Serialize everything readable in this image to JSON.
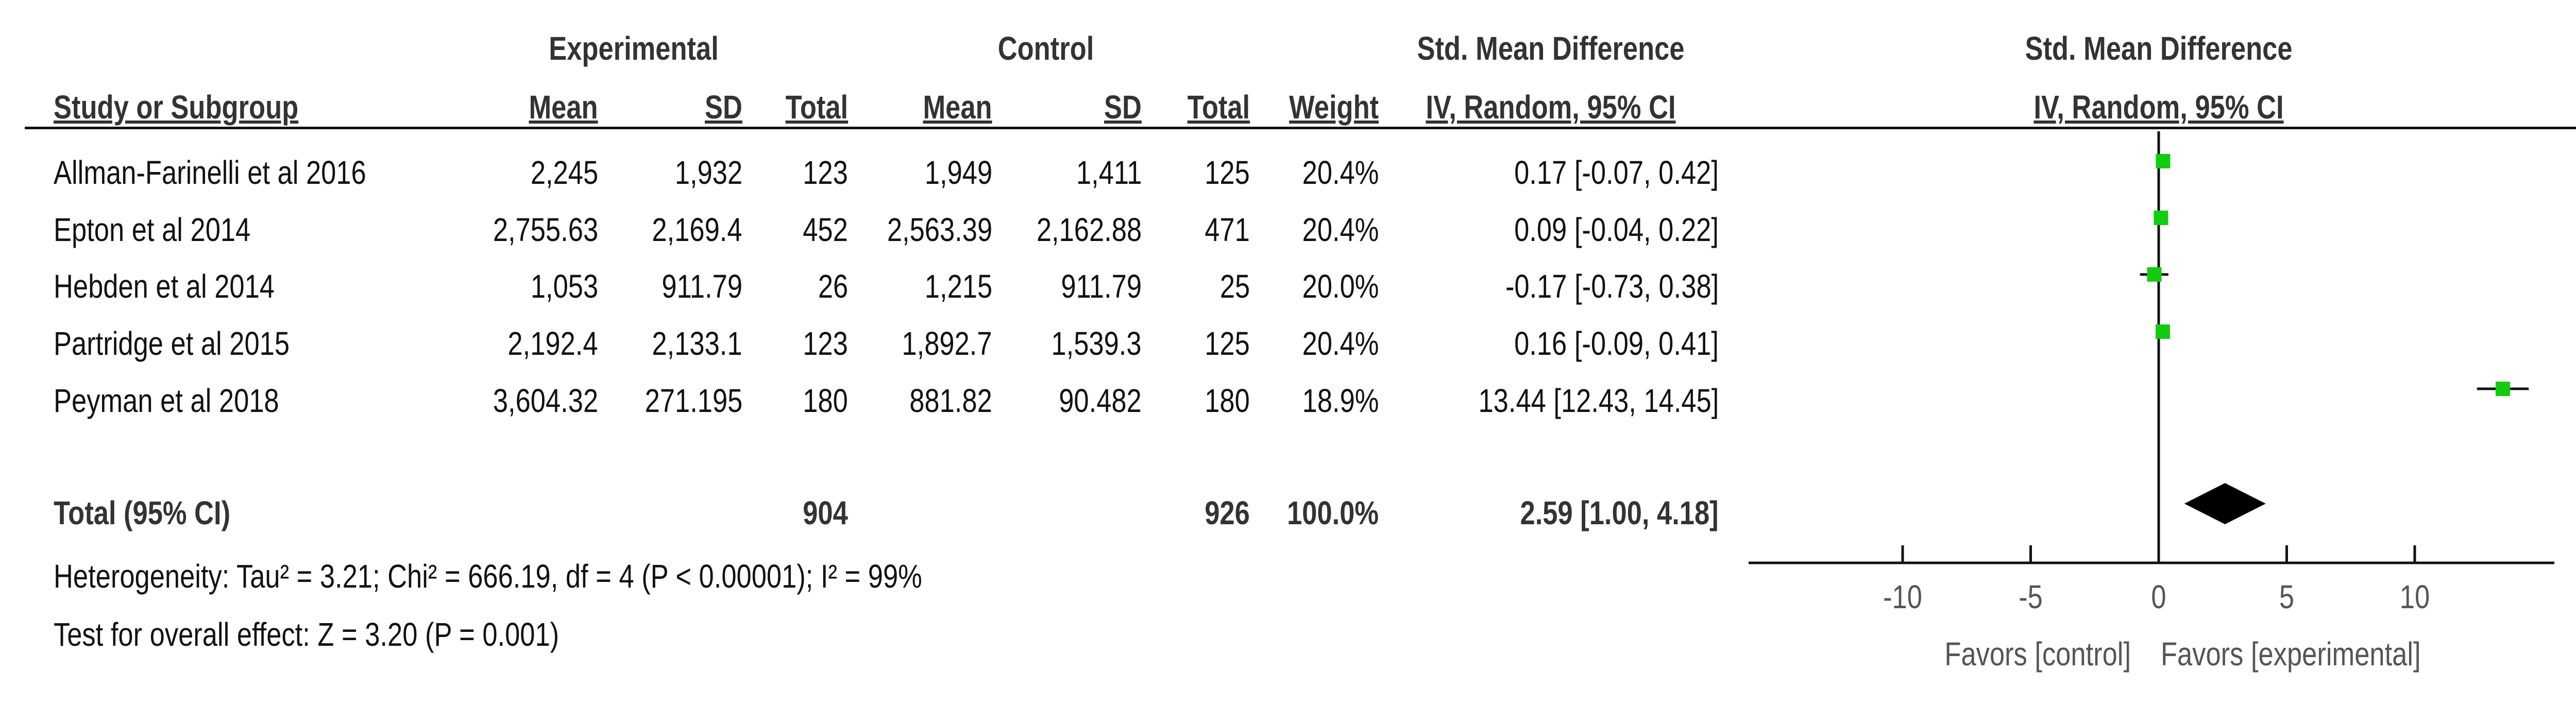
{
  "headers": {
    "experimental": "Experimental",
    "control": "Control",
    "smd": "Std. Mean Difference",
    "study_or_subgroup": "Study or Subgroup",
    "mean": "Mean",
    "sd": "SD",
    "total": "Total",
    "weight": "Weight",
    "method": "IV, Random, 95% CI",
    "plot_smd": "Std. Mean Difference",
    "plot_method": "IV, Random, 95% CI"
  },
  "studies": [
    {
      "name": "Allman-Farinelli et al 2016",
      "exp_mean": "2,245",
      "exp_sd": "1,932",
      "exp_total": "123",
      "ctl_mean": "1,949",
      "ctl_sd": "1,411",
      "ctl_total": "125",
      "weight": "20.4%",
      "ci_text": "0.17 [-0.07, 0.42]"
    },
    {
      "name": "Epton et al 2014",
      "exp_mean": "2,755.63",
      "exp_sd": "2,169.4",
      "exp_total": "452",
      "ctl_mean": "2,563.39",
      "ctl_sd": "2,162.88",
      "ctl_total": "471",
      "weight": "20.4%",
      "ci_text": "0.09 [-0.04, 0.22]"
    },
    {
      "name": "Hebden et al  2014",
      "exp_mean": "1,053",
      "exp_sd": "911.79",
      "exp_total": "26",
      "ctl_mean": "1,215",
      "ctl_sd": "911.79",
      "ctl_total": "25",
      "weight": "20.0%",
      "ci_text": "-0.17 [-0.73, 0.38]"
    },
    {
      "name": "Partridge et al 2015",
      "exp_mean": "2,192.4",
      "exp_sd": "2,133.1",
      "exp_total": "123",
      "ctl_mean": "1,892.7",
      "ctl_sd": "1,539.3",
      "ctl_total": "125",
      "weight": "20.4%",
      "ci_text": "0.16 [-0.09, 0.41]"
    },
    {
      "name": "Peyman et al 2018",
      "exp_mean": "3,604.32",
      "exp_sd": "271.195",
      "exp_total": "180",
      "ctl_mean": "881.82",
      "ctl_sd": "90.482",
      "ctl_total": "180",
      "weight": "18.9%",
      "ci_text": "13.44 [12.43, 14.45]"
    }
  ],
  "total": {
    "label": "Total (95% CI)",
    "exp_total": "904",
    "ctl_total": "926",
    "weight": "100.0%",
    "ci_text": "2.59 [1.00, 4.18]"
  },
  "heterogeneity": "Heterogeneity: Tau² = 3.21; Chi² = 666.19, df = 4 (P < 0.00001); I² = 99%",
  "overall_effect": "Test for overall effect: Z = 3.20 (P = 0.001)",
  "favors_left": "Favors [control]",
  "favors_right": "Favors [experimental]",
  "colors": {
    "marker": "#11cc11",
    "diamond": "#000000",
    "axis": "#111111"
  },
  "chart_data": {
    "type": "forest",
    "series": [
      {
        "name": "Allman-Farinelli et al 2016",
        "estimate": 0.17,
        "ci": [
          -0.07,
          0.42
        ],
        "weight": 20.4
      },
      {
        "name": "Epton et al 2014",
        "estimate": 0.09,
        "ci": [
          -0.04,
          0.22
        ],
        "weight": 20.4
      },
      {
        "name": "Hebden et al  2014",
        "estimate": -0.17,
        "ci": [
          -0.73,
          0.38
        ],
        "weight": 20.0
      },
      {
        "name": "Partridge et al 2015",
        "estimate": 0.16,
        "ci": [
          -0.09,
          0.41
        ],
        "weight": 20.4
      },
      {
        "name": "Peyman et al 2018",
        "estimate": 13.44,
        "ci": [
          12.43,
          14.45
        ],
        "weight": 18.9
      }
    ],
    "pooled": {
      "estimate": 2.59,
      "ci": [
        1.0,
        4.18
      ]
    },
    "xlim": [
      -15,
      15
    ],
    "ticks": [
      -10,
      -5,
      0,
      5,
      10
    ],
    "tick_labels": [
      "-10",
      "-5",
      "0",
      "5",
      "10"
    ]
  }
}
